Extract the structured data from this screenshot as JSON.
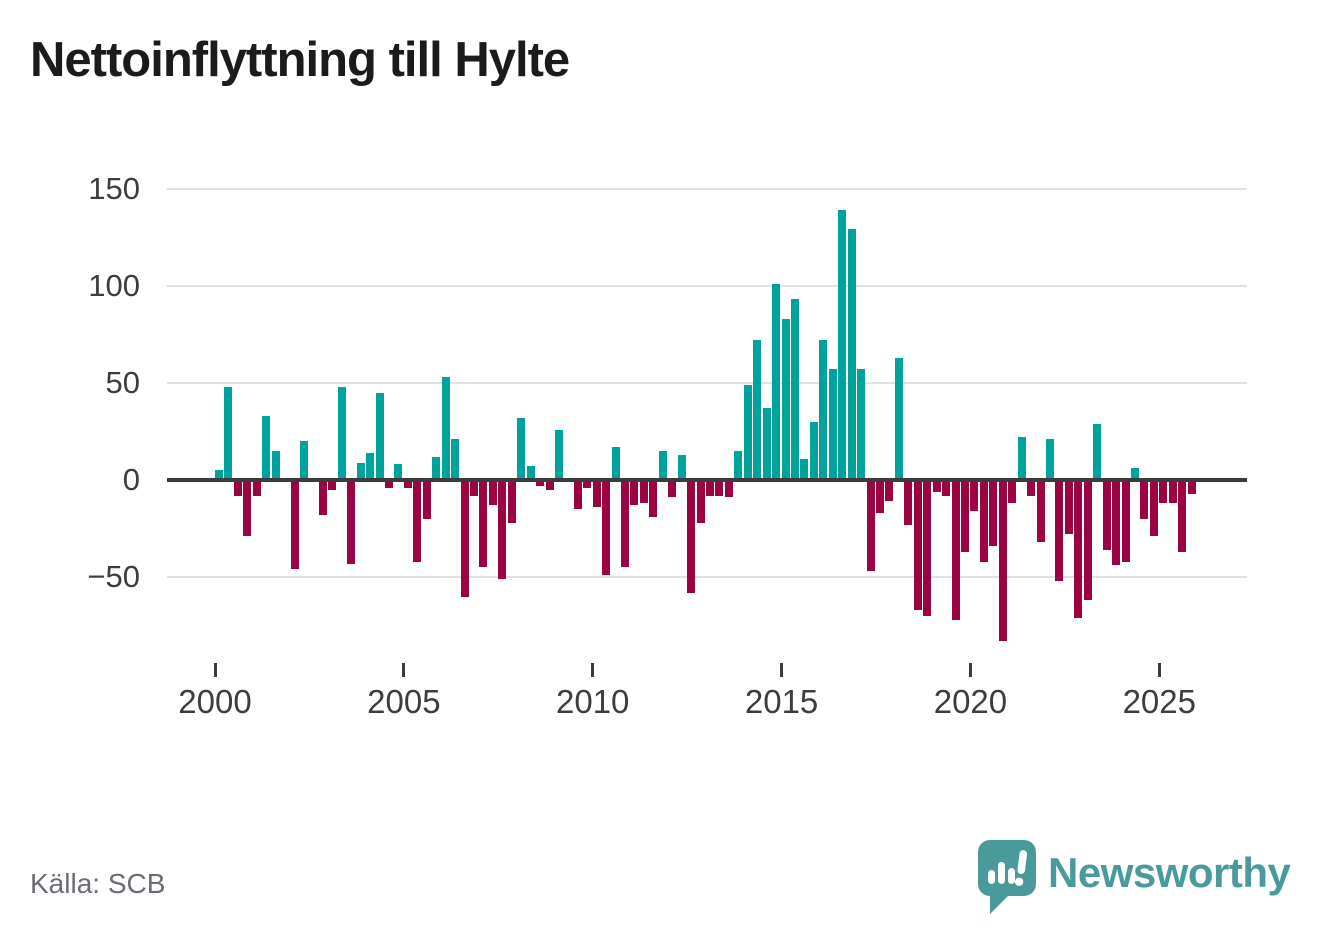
{
  "title": "Nettoinflyttning till Hylte",
  "source": "Källa: SCB",
  "branding": {
    "logo_text": "Newsworthy",
    "logo_icon": "newsworthy-speech-bubble-bar-chart-icon",
    "brand_color": "#4a9a9c"
  },
  "colors": {
    "positive_bar": "#00a39b",
    "negative_bar": "#9b0343",
    "zero_line": "#3b3b3b",
    "grid_line": "#e1e1e1",
    "title_text": "#1b1b1b",
    "axis_text": "#3d3d3d",
    "source_text": "#6c6c75",
    "background": "#ffffff"
  },
  "chart_data": {
    "type": "bar",
    "title": "Nettoinflyttning till Hylte",
    "frequency": "quarterly",
    "start": "2000 Q1",
    "end": "2025 Q4",
    "grid": true,
    "xlabel": "",
    "ylabel": "",
    "ylim": [
      -90,
      150
    ],
    "y_ticks": [
      150,
      100,
      50,
      0,
      -50
    ],
    "y_tick_labels": [
      "150",
      "100",
      "50",
      "0",
      "−50"
    ],
    "x_tick_labels": [
      "2000",
      "2005",
      "2010",
      "2015",
      "2020",
      "2025"
    ],
    "positive_color": "#00a39b",
    "negative_color": "#9b0343",
    "series": [
      {
        "name": "Nettoinflyttning till Hylte",
        "values": [
          5,
          48,
          -8,
          -29,
          -8,
          33,
          15,
          0,
          -46,
          20,
          0,
          -18,
          -5,
          48,
          -43,
          9,
          14,
          45,
          -4,
          8,
          -4,
          -42,
          -20,
          12,
          53,
          21,
          -60,
          -8,
          -45,
          -13,
          -51,
          -22,
          32,
          7,
          -3,
          -5,
          26,
          0,
          -15,
          -4,
          -14,
          -49,
          17,
          -45,
          -13,
          -12,
          -19,
          15,
          -9,
          13,
          -58,
          -22,
          -8,
          -8,
          -9,
          15,
          49,
          72,
          37,
          101,
          83,
          93,
          11,
          30,
          72,
          57,
          139,
          129,
          57,
          -47,
          -17,
          -11,
          63,
          -23,
          -67,
          -70,
          -6,
          -8,
          -72,
          -37,
          -16,
          -42,
          -34,
          -83,
          -12,
          22,
          -8,
          -32,
          21,
          -52,
          -28,
          -71,
          -62,
          29,
          -36,
          -44,
          -42,
          6,
          -20,
          -29,
          -12,
          -12,
          -37,
          -7
        ]
      }
    ]
  }
}
